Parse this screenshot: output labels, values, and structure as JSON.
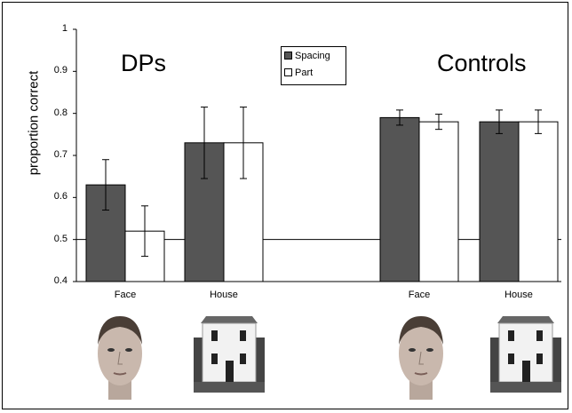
{
  "chart_data": {
    "type": "bar",
    "ylabel": "proportion correct",
    "ylim": [
      0.4,
      1
    ],
    "yticks": [
      "0.4",
      "0.5",
      "0.6",
      "0.7",
      "0.8",
      "0.9",
      "1"
    ],
    "reference_line": 0.5,
    "legend": [
      "Spacing",
      "Part"
    ],
    "groups": [
      {
        "title": "DPs",
        "categories": [
          "Face",
          "House"
        ],
        "series": [
          {
            "name": "Spacing",
            "values": [
              0.63,
              0.73
            ],
            "errors": [
              0.06,
              0.085
            ]
          },
          {
            "name": "Part",
            "values": [
              0.52,
              0.73
            ],
            "errors": [
              0.06,
              0.085
            ]
          }
        ]
      },
      {
        "title": "Controls",
        "categories": [
          "Face",
          "House"
        ],
        "series": [
          {
            "name": "Spacing",
            "values": [
              0.79,
              0.78
            ],
            "errors": [
              0.018,
              0.028
            ]
          },
          {
            "name": "Part",
            "values": [
              0.78,
              0.78
            ],
            "errors": [
              0.018,
              0.028
            ]
          }
        ]
      }
    ],
    "colors": {
      "Spacing": "#555555",
      "Part": "#ffffff"
    }
  }
}
